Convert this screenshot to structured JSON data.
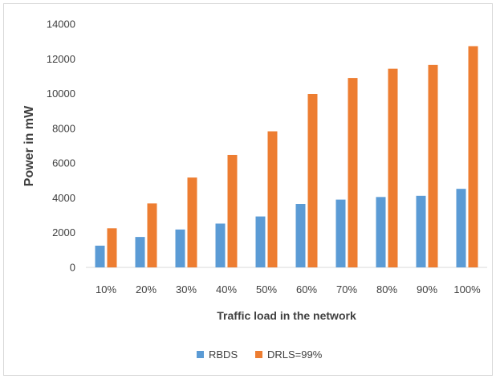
{
  "chart_data": {
    "type": "bar",
    "categories": [
      "10%",
      "20%",
      "30%",
      "40%",
      "50%",
      "60%",
      "70%",
      "80%",
      "90%",
      "100%"
    ],
    "series": [
      {
        "name": "RBDS",
        "color": "#5b9bd5",
        "values": [
          1250,
          1750,
          2180,
          2520,
          2930,
          3650,
          3900,
          4050,
          4120,
          4520
        ]
      },
      {
        "name": "DRLS=99%",
        "color": "#ed7d31",
        "values": [
          2250,
          3680,
          5170,
          6470,
          7830,
          9980,
          10900,
          11430,
          11650,
          12730
        ]
      }
    ],
    "xlabel": "Traffic load in the network",
    "ylabel": "Power in mW",
    "ylim": [
      0,
      14000
    ],
    "yticks": [
      0,
      2000,
      4000,
      6000,
      8000,
      10000,
      12000,
      14000
    ],
    "grid": false,
    "legend": "bottom"
  }
}
